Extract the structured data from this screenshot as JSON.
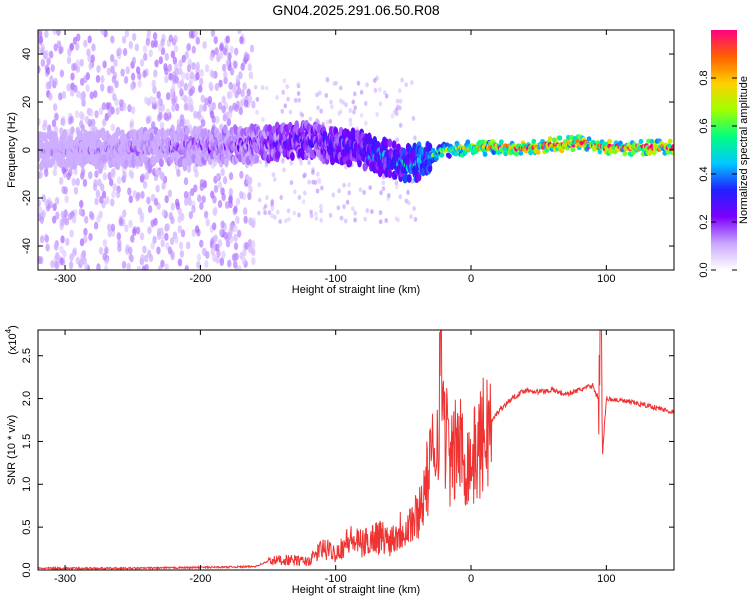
{
  "title": "GN04.2025.291.06.50.R08",
  "chart_data": [
    {
      "type": "heatmap",
      "panel": "spectrogram",
      "xlabel": "Height of straight line (km)",
      "ylabel": "Frequency (Hz)",
      "xlim": [
        -320,
        150
      ],
      "ylim": [
        -50,
        50
      ],
      "x_ticks": [
        -300,
        -200,
        -100,
        0,
        100
      ],
      "y_ticks": [
        -40,
        -20,
        0,
        20,
        40
      ],
      "colorbar": {
        "label": "Normalized spectral amplitude",
        "range": [
          0,
          1
        ],
        "ticks": [
          "0.0",
          "0.2",
          "0.4",
          "0.6",
          "0.8"
        ],
        "colors": [
          "#ffffff",
          "#c9a6ff",
          "#7a00ff",
          "#2020ff",
          "#00c8ff",
          "#00ff80",
          "#a0ff00",
          "#ffd000",
          "#ff6000",
          "#ff0080"
        ]
      },
      "signal_band": [
        {
          "x": -320,
          "freq": 0,
          "amplitude": 0.12
        },
        {
          "x": -250,
          "freq": 1,
          "amplitude": 0.15
        },
        {
          "x": -170,
          "freq": 2,
          "amplitude": 0.2
        },
        {
          "x": -120,
          "freq": 4,
          "amplitude": 0.3
        },
        {
          "x": -80,
          "freq": 0,
          "amplitude": 0.35
        },
        {
          "x": -50,
          "freq": -6,
          "amplitude": 0.45
        },
        {
          "x": -40,
          "freq": -5,
          "amplitude": 0.5
        },
        {
          "x": -20,
          "freq": 0,
          "amplitude": 0.6
        },
        {
          "x": 0,
          "freq": 1,
          "amplitude": 0.75
        },
        {
          "x": 40,
          "freq": 1,
          "amplitude": 0.95
        },
        {
          "x": 80,
          "freq": 3,
          "amplitude": 0.95
        },
        {
          "x": 100,
          "freq": 1,
          "amplitude": 0.95
        },
        {
          "x": 150,
          "freq": 1,
          "amplitude": 0.9
        }
      ]
    },
    {
      "type": "line",
      "panel": "snr",
      "xlabel": "Height of straight line (km)",
      "ylabel": "SNR (10 * v/v)",
      "y_multiplier": "(x10",
      "y_multiplier_exp": "4",
      "y_multiplier_close": ")",
      "xlim": [
        -320,
        150
      ],
      "ylim": [
        0,
        2.8
      ],
      "x_ticks": [
        -300,
        -200,
        -100,
        0,
        100
      ],
      "y_ticks": [
        "0.0",
        "0.5",
        "1.0",
        "1.5",
        "2.0",
        "2.5"
      ],
      "series_color": "#ee3333",
      "series": [
        {
          "x": [
            -320,
            -250,
            -200,
            -160,
            -150,
            -140,
            -120,
            -110,
            -100,
            -90,
            -80,
            -70,
            -60,
            -50,
            -40,
            -35,
            -30,
            -25,
            -22,
            -20,
            -15,
            -10,
            -5,
            0,
            5,
            10,
            20,
            30,
            40,
            50,
            60,
            70,
            80,
            90,
            94,
            96,
            97,
            100,
            110,
            120,
            130,
            140,
            150
          ],
          "y": [
            0.02,
            0.02,
            0.03,
            0.04,
            0.1,
            0.12,
            0.1,
            0.25,
            0.2,
            0.35,
            0.3,
            0.4,
            0.35,
            0.5,
            0.6,
            0.9,
            1.2,
            1.6,
            2.6,
            1.8,
            1.2,
            1.5,
            1.3,
            1.25,
            1.4,
            1.6,
            1.85,
            2.0,
            2.1,
            2.08,
            2.1,
            2.05,
            2.1,
            2.15,
            2.0,
            2.8,
            1.3,
            2.0,
            1.98,
            1.95,
            1.92,
            1.88,
            1.84
          ]
        }
      ]
    }
  ]
}
